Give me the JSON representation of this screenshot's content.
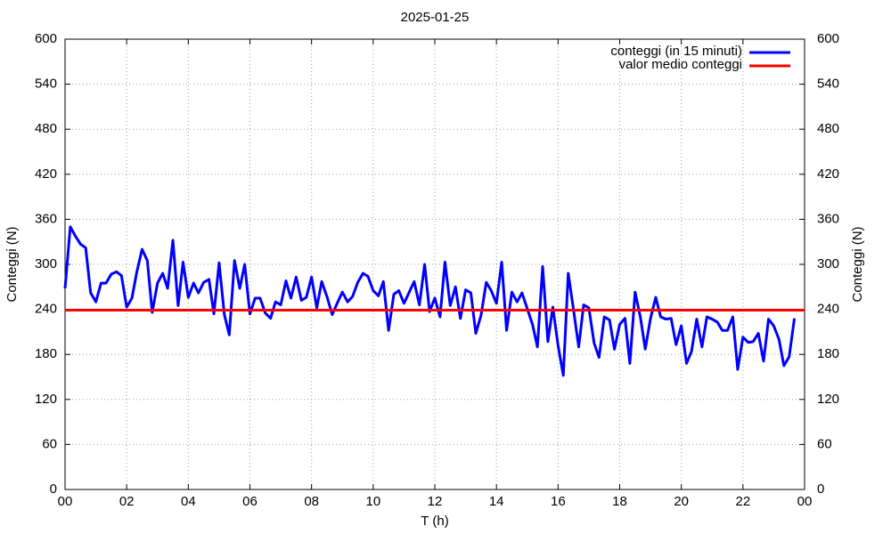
{
  "chart_data": {
    "type": "line",
    "title": "2025-01-25",
    "xlabel": "T (h)",
    "ylabel": "Conteggi (N)",
    "y2label": "Conteggi (N)",
    "xlim": [
      0,
      24
    ],
    "xticks": [
      {
        "value": 0,
        "label": "00"
      },
      {
        "value": 2,
        "label": "02"
      },
      {
        "value": 4,
        "label": "04"
      },
      {
        "value": 6,
        "label": "06"
      },
      {
        "value": 8,
        "label": "08"
      },
      10,
      12,
      14,
      16,
      18,
      20,
      22,
      {
        "value": 24,
        "label": "00"
      }
    ],
    "ylim": [
      0,
      600
    ],
    "yticks": [
      0,
      60,
      120,
      180,
      240,
      300,
      360,
      420,
      480,
      540,
      600
    ],
    "y2lim": [
      0,
      600
    ],
    "y2ticks": [
      0,
      60,
      120,
      180,
      240,
      300,
      360,
      420,
      480,
      540,
      600
    ],
    "grid": true,
    "legend": "top-right",
    "series": [
      {
        "name": "conteggi (in 15 minuti)",
        "color": "#0000ff",
        "x": [
          0,
          0.17,
          0.33,
          0.5,
          0.67,
          0.83,
          1,
          1.17,
          1.33,
          1.5,
          1.67,
          1.83,
          2,
          2.17,
          2.33,
          2.5,
          2.67,
          2.83,
          3,
          3.17,
          3.33,
          3.5,
          3.67,
          3.83,
          4,
          4.17,
          4.33,
          4.5,
          4.67,
          4.83,
          5,
          5.17,
          5.33,
          5.5,
          5.67,
          5.83,
          6,
          6.17,
          6.33,
          6.5,
          6.67,
          6.83,
          7,
          7.17,
          7.33,
          7.5,
          7.67,
          7.83,
          8,
          8.17,
          8.33,
          8.5,
          8.67,
          8.83,
          9,
          9.17,
          9.33,
          9.5,
          9.67,
          9.83,
          10,
          10.17,
          10.33,
          10.5,
          10.67,
          10.83,
          11,
          11.17,
          11.33,
          11.5,
          11.67,
          11.83,
          12,
          12.17,
          12.33,
          12.5,
          12.67,
          12.83,
          13,
          13.17,
          13.33,
          13.5,
          13.67,
          13.83,
          14,
          14.17,
          14.33,
          14.5,
          14.67,
          14.83,
          15,
          15.17,
          15.33,
          15.5,
          15.67,
          15.83,
          16,
          16.17,
          16.33,
          16.5,
          16.67,
          16.83,
          17,
          17.17,
          17.33,
          17.5,
          17.67,
          17.83,
          18,
          18.17,
          18.33,
          18.5,
          18.67,
          18.83,
          19,
          19.17,
          19.33,
          19.5,
          19.67,
          19.83,
          20,
          20.17,
          20.33,
          20.5,
          20.67,
          20.83,
          21,
          21.17,
          21.33,
          21.5,
          21.67,
          21.83,
          22,
          22.17,
          22.33,
          22.5,
          22.67,
          22.83,
          23,
          23.17,
          23.33,
          23.5,
          23.67
        ],
        "values": [
          268,
          350,
          338,
          327,
          322,
          262,
          250,
          275,
          275,
          287,
          290,
          285,
          243,
          255,
          290,
          320,
          305,
          236,
          275,
          288,
          268,
          332,
          245,
          303,
          256,
          275,
          262,
          276,
          280,
          234,
          302,
          233,
          206,
          305,
          268,
          300,
          234,
          255,
          255,
          235,
          228,
          250,
          246,
          278,
          255,
          283,
          252,
          256,
          283,
          242,
          277,
          257,
          233,
          248,
          263,
          250,
          257,
          276,
          288,
          284,
          265,
          258,
          277,
          212,
          260,
          265,
          248,
          263,
          277,
          246,
          300,
          237,
          255,
          230,
          303,
          245,
          270,
          228,
          266,
          262,
          208,
          232,
          276,
          265,
          248,
          303,
          212,
          263,
          250,
          262,
          241,
          220,
          190,
          297,
          197,
          243,
          192,
          152,
          288,
          240,
          190,
          246,
          242,
          195,
          176,
          230,
          226,
          187,
          220,
          228,
          168,
          263,
          230,
          187,
          228,
          256,
          230,
          227,
          228,
          193,
          218,
          168,
          184,
          227,
          190,
          230,
          227,
          223,
          212,
          212,
          230,
          160,
          203,
          196,
          197,
          208,
          171,
          227,
          218,
          200,
          165,
          177,
          228
        ]
      },
      {
        "name": "valor medio conteggi",
        "color": "#ff0000",
        "x": [
          0,
          24
        ],
        "values": [
          239,
          239
        ]
      }
    ]
  }
}
